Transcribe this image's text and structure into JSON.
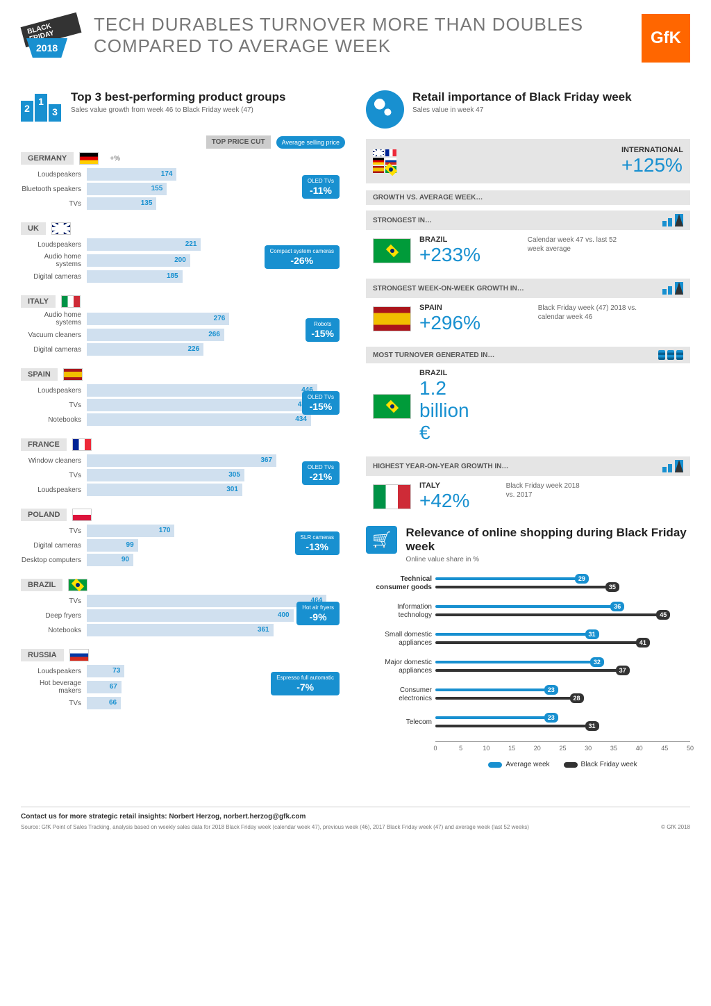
{
  "header": {
    "badge_tag": "BLACK FRIDAY",
    "badge_year": "2018",
    "title": "TECH DURABLES TURNOVER MORE THAN DOUBLES COMPARED TO AVERAGE WEEK",
    "logo": "GfK"
  },
  "left": {
    "title": "Top 3 best-performing product groups",
    "subtitle": "Sales value growth from week 46 to Black Friday week (47)",
    "top_price_cut_label": "TOP PRICE CUT",
    "asp_label": "Average selling price",
    "pct_label": "+%",
    "bar_max": 500,
    "bar_color": "#d0e0ef",
    "bar_text_color": "#1890d0",
    "tag_color": "#1890d0",
    "countries": [
      {
        "name": "GERMANY",
        "flag": "de",
        "items": [
          {
            "label": "Loudspeakers",
            "val": 174
          },
          {
            "label": "Bluetooth speakers",
            "val": 155
          },
          {
            "label": "TVs",
            "val": 135
          }
        ],
        "tag": {
          "label": "OLED TVs",
          "val": "-11%"
        }
      },
      {
        "name": "UK",
        "flag": "uk",
        "items": [
          {
            "label": "Loudspeakers",
            "val": 221
          },
          {
            "label": "Audio home systems",
            "val": 200
          },
          {
            "label": "Digital cameras",
            "val": 185
          }
        ],
        "tag": {
          "label": "Compact system cameras",
          "val": "-26%"
        }
      },
      {
        "name": "ITALY",
        "flag": "it",
        "items": [
          {
            "label": "Audio home systems",
            "val": 276
          },
          {
            "label": "Vacuum cleaners",
            "val": 266
          },
          {
            "label": "Digital cameras",
            "val": 226
          }
        ],
        "tag": {
          "label": "Robots",
          "val": "-15%"
        }
      },
      {
        "name": "SPAIN",
        "flag": "es",
        "items": [
          {
            "label": "Loudspeakers",
            "val": 446
          },
          {
            "label": "TVs",
            "val": 439
          },
          {
            "label": "Notebooks",
            "val": 434
          }
        ],
        "tag": {
          "label": "OLED TVs",
          "val": "-15%"
        }
      },
      {
        "name": "FRANCE",
        "flag": "fr",
        "items": [
          {
            "label": "Window cleaners",
            "val": 367
          },
          {
            "label": "TVs",
            "val": 305
          },
          {
            "label": "Loudspeakers",
            "val": 301
          }
        ],
        "tag": {
          "label": "OLED TVs",
          "val": "-21%"
        }
      },
      {
        "name": "POLAND",
        "flag": "pl",
        "items": [
          {
            "label": "TVs",
            "val": 170
          },
          {
            "label": "Digital cameras",
            "val": 99
          },
          {
            "label": "Desktop computers",
            "val": 90
          }
        ],
        "tag": {
          "label": "SLR cameras",
          "val": "-13%"
        }
      },
      {
        "name": "BRAZIL",
        "flag": "br",
        "items": [
          {
            "label": "TVs",
            "val": 464
          },
          {
            "label": "Deep fryers",
            "val": 400
          },
          {
            "label": "Notebooks",
            "val": 361
          }
        ],
        "tag": {
          "label": "Hot air fryers",
          "val": "-9%"
        }
      },
      {
        "name": "RUSSIA",
        "flag": "ru",
        "items": [
          {
            "label": "Loudspeakers",
            "val": 73
          },
          {
            "label": "Hot beverage makers",
            "val": 67
          },
          {
            "label": "TVs",
            "val": 66
          }
        ],
        "tag": {
          "label": "Espresso full automatic",
          "val": "-7%"
        }
      }
    ]
  },
  "right": {
    "retail_title": "Retail importance of Black Friday week",
    "retail_subtitle": "Sales value in week 47",
    "intl_label": "INTERNATIONAL",
    "intl_value": "+125%",
    "growth_header": "GROWTH VS. AVERAGE WEEK…",
    "stats": [
      {
        "header": "STRONGEST IN…",
        "flag": "br",
        "country": "BRAZIL",
        "value": "+233%",
        "note": "Calendar week 47 vs. last 52 week average",
        "icon": "trend"
      },
      {
        "header": "STRONGEST WEEK-ON-WEEK GROWTH IN…",
        "flag": "es",
        "country": "SPAIN",
        "value": "+296%",
        "note": "Black Friday week (47) 2018 vs. calendar week 46",
        "icon": "trend"
      },
      {
        "header": "MOST TURNOVER GENERATED IN…",
        "flag": "br",
        "country": "BRAZIL",
        "value": "1.2 billion €",
        "note": "",
        "icon": "coins"
      },
      {
        "header": "HIGHEST YEAR-ON-YEAR GROWTH IN…",
        "flag": "it",
        "country": "ITALY",
        "value": "+42%",
        "note": "Black Friday week 2018 vs. 2017",
        "icon": "trend"
      }
    ],
    "online_title": "Relevance of online shopping during Black Friday week",
    "online_subtitle": "Online value share in %",
    "chart": {
      "x_max": 50,
      "x_ticks": [
        0,
        5,
        10,
        15,
        20,
        25,
        30,
        35,
        40,
        45,
        50
      ],
      "avg_color": "#1890d0",
      "bf_color": "#333333",
      "legend_avg": "Average week",
      "legend_bf": "Black Friday week",
      "rows": [
        {
          "label": "Technical consumer goods",
          "avg": 29,
          "bf": 35,
          "bold": true
        },
        {
          "label": "Information technology",
          "avg": 36,
          "bf": 45,
          "bold": false
        },
        {
          "label": "Small domestic appliances",
          "avg": 31,
          "bf": 41,
          "bold": false
        },
        {
          "label": "Major domestic appliances",
          "avg": 32,
          "bf": 37,
          "bold": false
        },
        {
          "label": "Consumer electronics",
          "avg": 23,
          "bf": 28,
          "bold": false
        },
        {
          "label": "Telecom",
          "avg": 23,
          "bf": 31,
          "bold": false
        }
      ]
    }
  },
  "footer": {
    "contact": "Contact us for more strategic retail insights: Norbert Herzog, norbert.herzog@gfk.com",
    "source": "Source: GfK Point of Sales Tracking, analysis based on weekly sales data for 2018 Black Friday week (calendar week 47), previous week (46), 2017 Black Friday week (47) and average week (last 52 weeks)",
    "copyright": "© GfK 2018"
  }
}
